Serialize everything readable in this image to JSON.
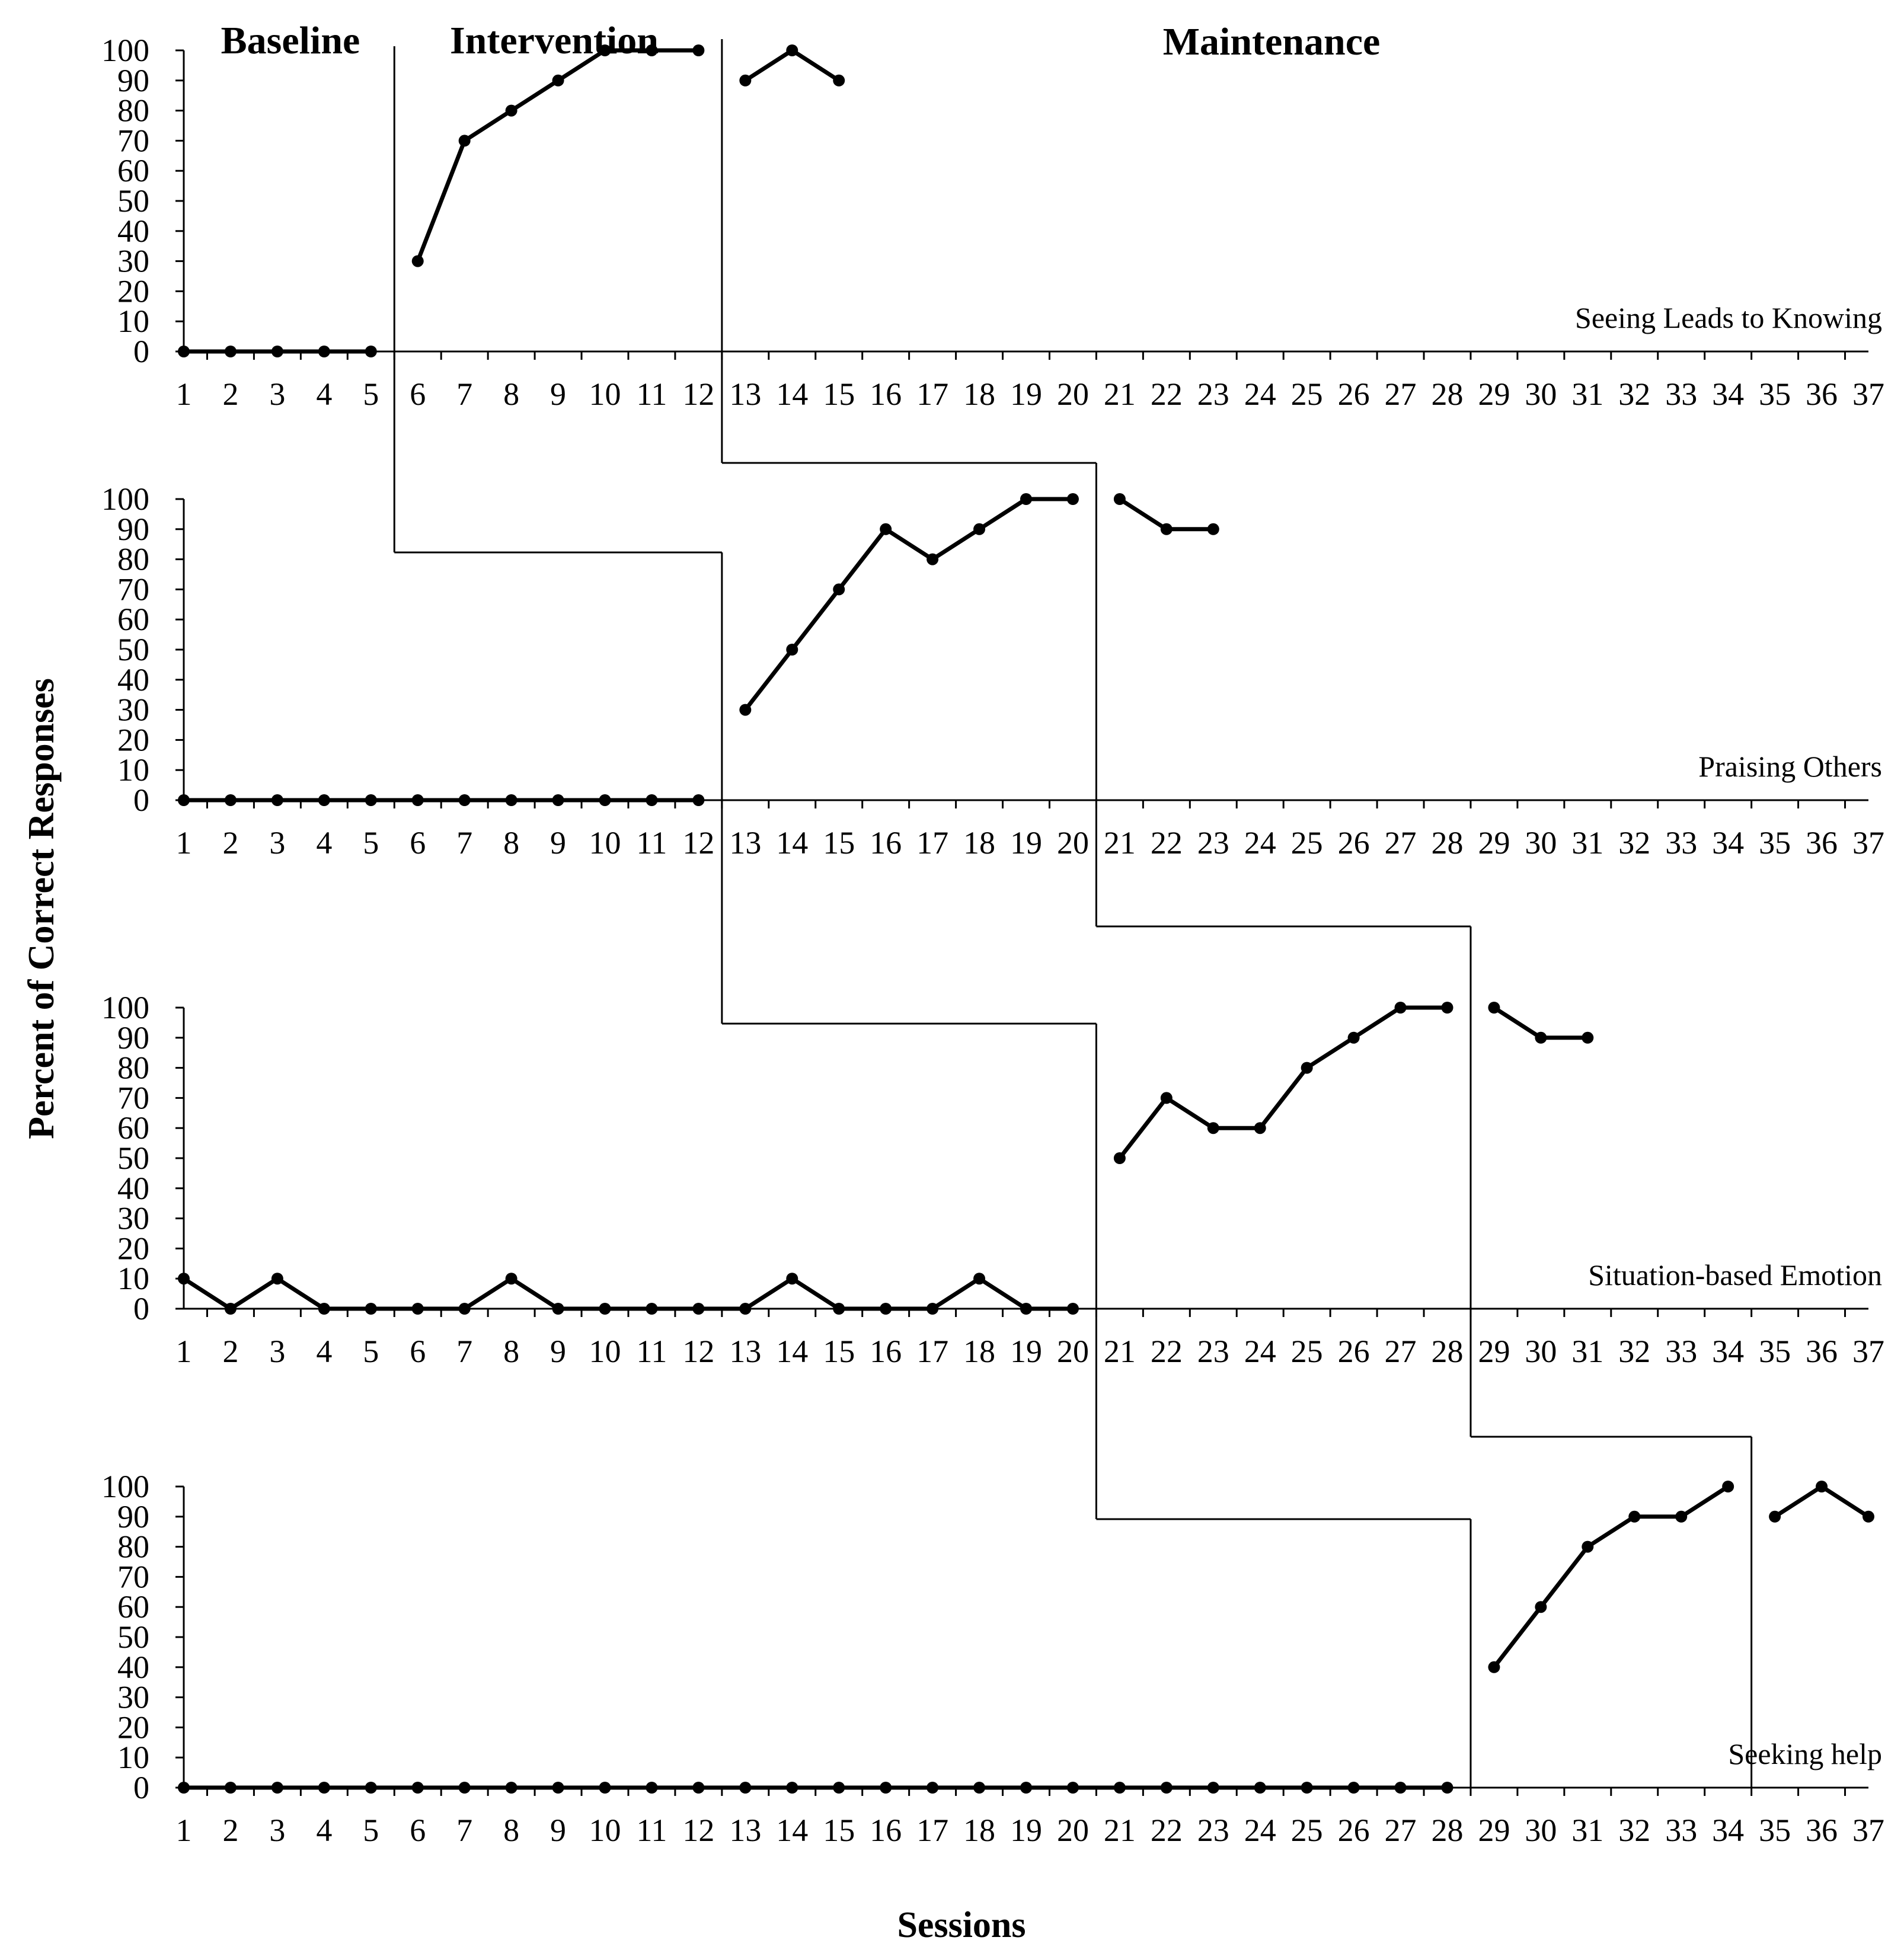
{
  "chart_data": {
    "type": "line",
    "title": "",
    "xlabel": "Sessions",
    "ylabel": "Percent of Correct Responses",
    "phase_labels": [
      "Baseline",
      "Intervention",
      "Maintenance"
    ],
    "x": [
      1,
      2,
      3,
      4,
      5,
      6,
      7,
      8,
      9,
      10,
      11,
      12,
      13,
      14,
      15,
      16,
      17,
      18,
      19,
      20,
      21,
      22,
      23,
      24,
      25,
      26,
      27,
      28,
      29,
      30,
      31,
      32,
      33,
      34,
      35,
      36,
      37
    ],
    "xlim": [
      1,
      37
    ],
    "ylim": [
      0,
      100
    ],
    "yticks": [
      0,
      10,
      20,
      30,
      40,
      50,
      60,
      70,
      80,
      90,
      100
    ],
    "grid": false,
    "panels": [
      {
        "name": "Seeing Leads to Knowing",
        "baseline": {
          "x": [
            1,
            2,
            3,
            4,
            5
          ],
          "y": [
            0,
            0,
            0,
            0,
            0
          ]
        },
        "intervention": {
          "x": [
            6,
            7,
            8,
            9,
            10,
            11,
            12
          ],
          "y": [
            30,
            70,
            80,
            90,
            100,
            100,
            100
          ]
        },
        "maintenance": {
          "x": [
            13,
            14,
            15
          ],
          "y": [
            90,
            100,
            90
          ]
        },
        "phase_changes": [
          5.5,
          12.5
        ]
      },
      {
        "name": "Praising Others",
        "baseline": {
          "x": [
            1,
            2,
            3,
            4,
            5,
            6,
            7,
            8,
            9,
            10,
            11,
            12
          ],
          "y": [
            0,
            0,
            0,
            0,
            0,
            0,
            0,
            0,
            0,
            0,
            0,
            0
          ]
        },
        "intervention": {
          "x": [
            13,
            14,
            15,
            16,
            17,
            18,
            19,
            20
          ],
          "y": [
            30,
            50,
            70,
            90,
            80,
            90,
            100,
            100
          ]
        },
        "maintenance": {
          "x": [
            21,
            22,
            23
          ],
          "y": [
            100,
            90,
            90
          ]
        },
        "phase_changes": [
          12.5,
          20.5
        ]
      },
      {
        "name": "Situation-based Emotion",
        "baseline": {
          "x": [
            1,
            2,
            3,
            4,
            5,
            6,
            7,
            8,
            9,
            10,
            11,
            12,
            13,
            14,
            15,
            16,
            17,
            18,
            19,
            20
          ],
          "y": [
            10,
            0,
            10,
            0,
            0,
            0,
            0,
            10,
            0,
            0,
            0,
            0,
            0,
            10,
            0,
            0,
            0,
            10,
            0,
            0
          ]
        },
        "intervention": {
          "x": [
            21,
            22,
            23,
            24,
            25,
            26,
            27,
            28
          ],
          "y": [
            50,
            70,
            60,
            60,
            80,
            90,
            100,
            100
          ]
        },
        "maintenance": {
          "x": [
            29,
            30,
            31
          ],
          "y": [
            100,
            90,
            90
          ]
        },
        "phase_changes": [
          20.5,
          28.5
        ]
      },
      {
        "name": "Seeking help",
        "baseline": {
          "x": [
            1,
            2,
            3,
            4,
            5,
            6,
            7,
            8,
            9,
            10,
            11,
            12,
            13,
            14,
            15,
            16,
            17,
            18,
            19,
            20,
            21,
            22,
            23,
            24,
            25,
            26,
            27,
            28
          ],
          "y": [
            0,
            0,
            0,
            0,
            0,
            0,
            0,
            0,
            0,
            0,
            0,
            0,
            0,
            0,
            0,
            0,
            0,
            0,
            0,
            0,
            0,
            0,
            0,
            0,
            0,
            0,
            0,
            0
          ]
        },
        "intervention": {
          "x": [
            29,
            30,
            31,
            32,
            33,
            34
          ],
          "y": [
            40,
            60,
            80,
            90,
            90,
            100
          ]
        },
        "maintenance": {
          "x": [
            35,
            36,
            37
          ],
          "y": [
            90,
            100,
            90
          ]
        },
        "phase_changes": [
          28.5,
          34.5
        ]
      }
    ]
  }
}
